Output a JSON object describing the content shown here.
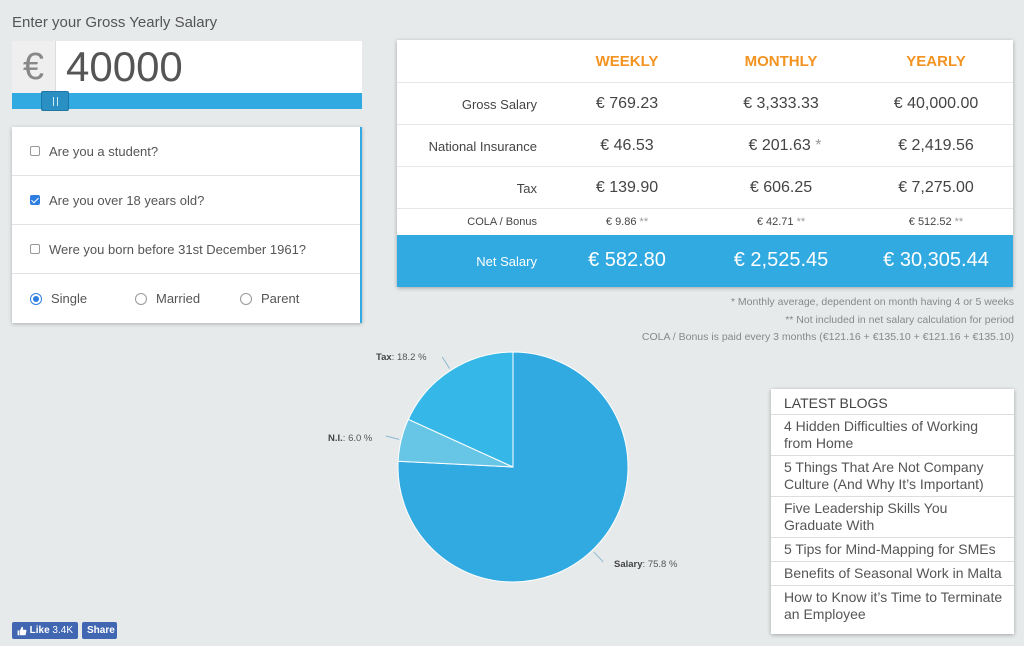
{
  "header": {
    "salary_label": "Enter your Gross Yearly Salary"
  },
  "salary": {
    "currency_symbol": "€",
    "value": "40000"
  },
  "slider": {
    "position_fraction": 0.09
  },
  "options": {
    "student": {
      "label": "Are you a student?",
      "checked": false
    },
    "over18": {
      "label": "Are you over 18 years old?",
      "checked": true
    },
    "before1961": {
      "label": "Were you born before 31st December 1961?",
      "checked": false
    },
    "status": [
      {
        "label": "Single",
        "checked": true
      },
      {
        "label": "Married",
        "checked": false
      },
      {
        "label": "Parent",
        "checked": false
      }
    ]
  },
  "table": {
    "columns": [
      "WEEKLY",
      "MONTHLY",
      "YEARLY"
    ],
    "rows": [
      {
        "label": "Gross Salary",
        "weekly": "€ 769.23",
        "monthly": "€ 3,333.33",
        "monthly_mark": "",
        "yearly": "€ 40,000.00",
        "weekly_mark": "",
        "yearly_mark": ""
      },
      {
        "label": "National Insurance",
        "weekly": "€ 46.53",
        "monthly": "€ 201.63",
        "monthly_mark": "*",
        "yearly": "€ 2,419.56",
        "weekly_mark": "",
        "yearly_mark": ""
      },
      {
        "label": "Tax",
        "weekly": "€ 139.90",
        "monthly": "€ 606.25",
        "monthly_mark": "",
        "yearly": "€ 7,275.00",
        "weekly_mark": "",
        "yearly_mark": ""
      },
      {
        "label": "COLA / Bonus",
        "weekly": "€ 9.86",
        "monthly": "€ 42.71",
        "monthly_mark": "**",
        "yearly": "€ 512.52",
        "weekly_mark": "**",
        "yearly_mark": "**"
      }
    ],
    "net": {
      "label": "Net Salary",
      "weekly": "€ 582.80",
      "monthly": "€ 2,525.45",
      "yearly": "€ 30,305.44"
    }
  },
  "notes": {
    "note1": "* Monthly average, dependent on month having 4 or 5 weeks",
    "note2": "** Not included in net salary calculation for period",
    "note3": "COLA / Bonus is paid every 3 months (€121.16 + €135.10 + €121.16 + €135.10)"
  },
  "chart_data": {
    "type": "pie",
    "slices": [
      {
        "name": "Salary",
        "value": 75.8,
        "label": "75.8 %",
        "color": "#31a9e1"
      },
      {
        "name": "N.I.",
        "value": 6.0,
        "label": "6.0 %",
        "color": "#67c5e6"
      },
      {
        "name": "Tax",
        "value": 18.2,
        "label": "18.2 %",
        "color": "#35b8e8"
      }
    ]
  },
  "blogs": {
    "title": "LATEST BLOGS",
    "items": [
      "4 Hidden Difficulties of Working from Home",
      "5 Things That Are Not Company Culture (And Why It’s Important)",
      "Five Leadership Skills You Graduate With",
      "5 Tips for Mind-Mapping for SMEs",
      "Benefits of Seasonal Work in Malta",
      "How to Know it’s Time to Terminate an Employee"
    ]
  },
  "social": {
    "like_label": "Like",
    "like_count": "3.4K",
    "share_label": "Share"
  },
  "colors": {
    "accent": "#31a9e1",
    "orange": "#f39321",
    "checked": "#2f7fe0",
    "facebook": "#4267b2"
  }
}
